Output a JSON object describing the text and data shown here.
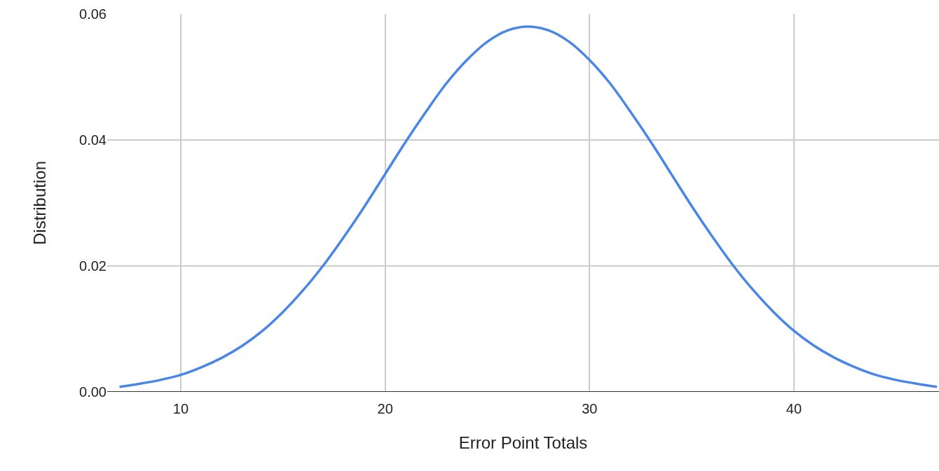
{
  "chart_data": {
    "type": "line",
    "xlabel": "Error Point Totals",
    "ylabel": "Distribution",
    "x": [
      7,
      8,
      9,
      10,
      11,
      12,
      13,
      14,
      15,
      16,
      17,
      18,
      19,
      20,
      21,
      22,
      23,
      24,
      25,
      26,
      27,
      28,
      29,
      30,
      31,
      32,
      33,
      34,
      35,
      36,
      37,
      38,
      39,
      40,
      41,
      42,
      43,
      44,
      45,
      46,
      47
    ],
    "series": [
      {
        "color": "#4a86e8",
        "values": [
          0.0008,
          0.0013,
          0.0019,
          0.0027,
          0.0039,
          0.0054,
          0.0073,
          0.0097,
          0.0127,
          0.0162,
          0.0202,
          0.0247,
          0.0295,
          0.0346,
          0.0397,
          0.0445,
          0.049,
          0.0527,
          0.0556,
          0.0574,
          0.058,
          0.0574,
          0.0556,
          0.0527,
          0.049,
          0.0445,
          0.0397,
          0.0346,
          0.0295,
          0.0247,
          0.0202,
          0.0162,
          0.0127,
          0.0097,
          0.0073,
          0.0054,
          0.0039,
          0.0027,
          0.0019,
          0.0013,
          0.0008
        ]
      }
    ],
    "xlim": [
      6.4,
      47.1
    ],
    "xticks": [
      10,
      20,
      30,
      40
    ],
    "ylim": [
      0,
      0.06
    ],
    "yticks": [
      {
        "value": 0,
        "label": "0.00"
      },
      {
        "value": 0.02,
        "label": "0.02"
      },
      {
        "value": 0.04,
        "label": "0.04"
      },
      {
        "value": 0.06,
        "label": "0.06"
      }
    ],
    "grid": true,
    "legend": false,
    "marker": "none",
    "line_style": "solid"
  }
}
